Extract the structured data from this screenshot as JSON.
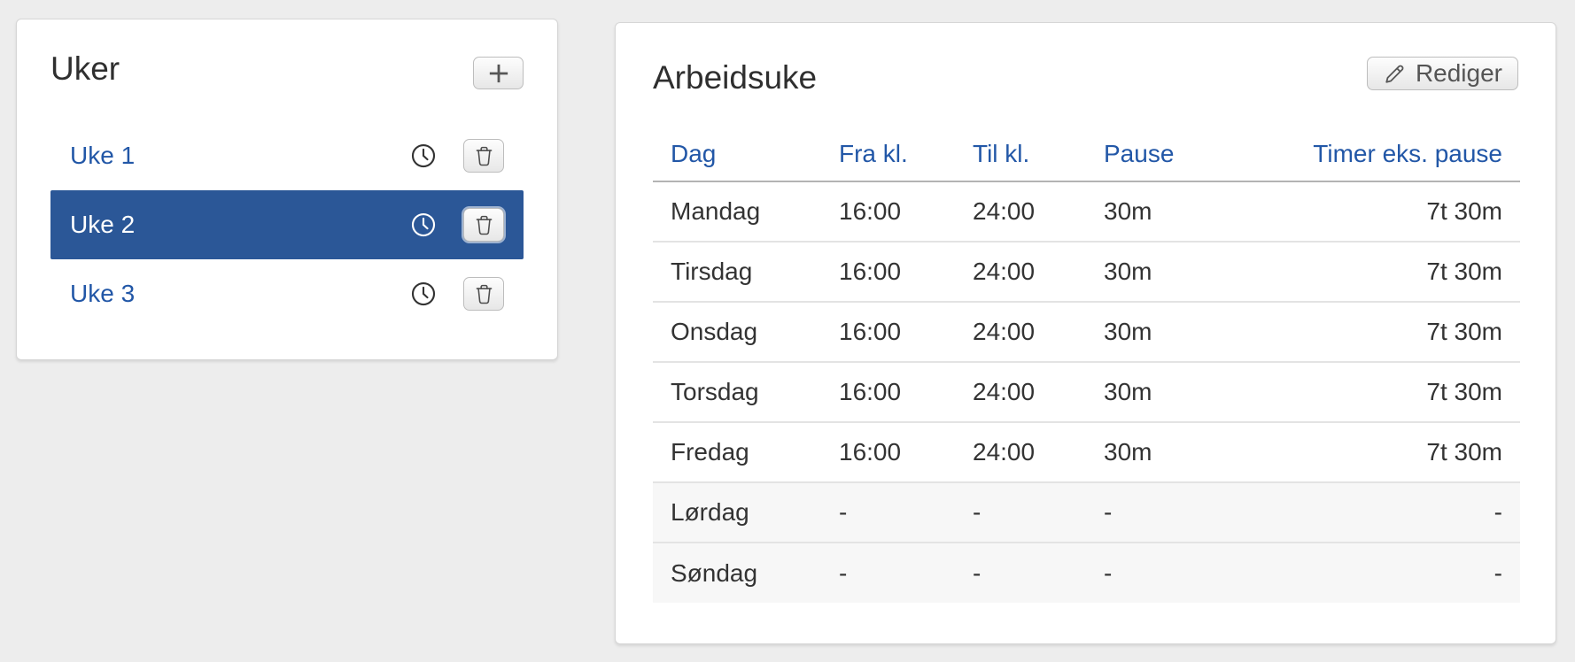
{
  "colors": {
    "page_background": "#ededed",
    "accent_blue": "#2257a7",
    "selected_row_blue": "#2b5797",
    "muted_row_background": "#f7f7f7"
  },
  "weeks_panel": {
    "title": "Uker",
    "add_button": {
      "icon": "plus-icon"
    },
    "items": [
      {
        "label": "Uke 1",
        "selected": false,
        "icons": [
          "clock-icon",
          "trash-icon"
        ]
      },
      {
        "label": "Uke 2",
        "selected": true,
        "icons": [
          "clock-icon",
          "trash-icon"
        ]
      },
      {
        "label": "Uke 3",
        "selected": false,
        "icons": [
          "clock-icon",
          "trash-icon"
        ]
      }
    ]
  },
  "workweek_panel": {
    "title": "Arbeidsuke",
    "edit_button": {
      "label": "Rediger",
      "icon": "pencil-icon"
    },
    "table": {
      "columns": [
        "Dag",
        "Fra kl.",
        "Til kl.",
        "Pause",
        "Timer eks. pause"
      ],
      "rows": [
        {
          "dag": "Mandag",
          "fra": "16:00",
          "til": "24:00",
          "pause": "30m",
          "timer": "7t 30m",
          "muted": false
        },
        {
          "dag": "Tirsdag",
          "fra": "16:00",
          "til": "24:00",
          "pause": "30m",
          "timer": "7t 30m",
          "muted": false
        },
        {
          "dag": "Onsdag",
          "fra": "16:00",
          "til": "24:00",
          "pause": "30m",
          "timer": "7t 30m",
          "muted": false
        },
        {
          "dag": "Torsdag",
          "fra": "16:00",
          "til": "24:00",
          "pause": "30m",
          "timer": "7t 30m",
          "muted": false
        },
        {
          "dag": "Fredag",
          "fra": "16:00",
          "til": "24:00",
          "pause": "30m",
          "timer": "7t 30m",
          "muted": false
        },
        {
          "dag": "Lørdag",
          "fra": "-",
          "til": "-",
          "pause": "-",
          "timer": "-",
          "muted": true
        },
        {
          "dag": "Søndag",
          "fra": "-",
          "til": "-",
          "pause": "-",
          "timer": "-",
          "muted": true
        }
      ]
    }
  }
}
